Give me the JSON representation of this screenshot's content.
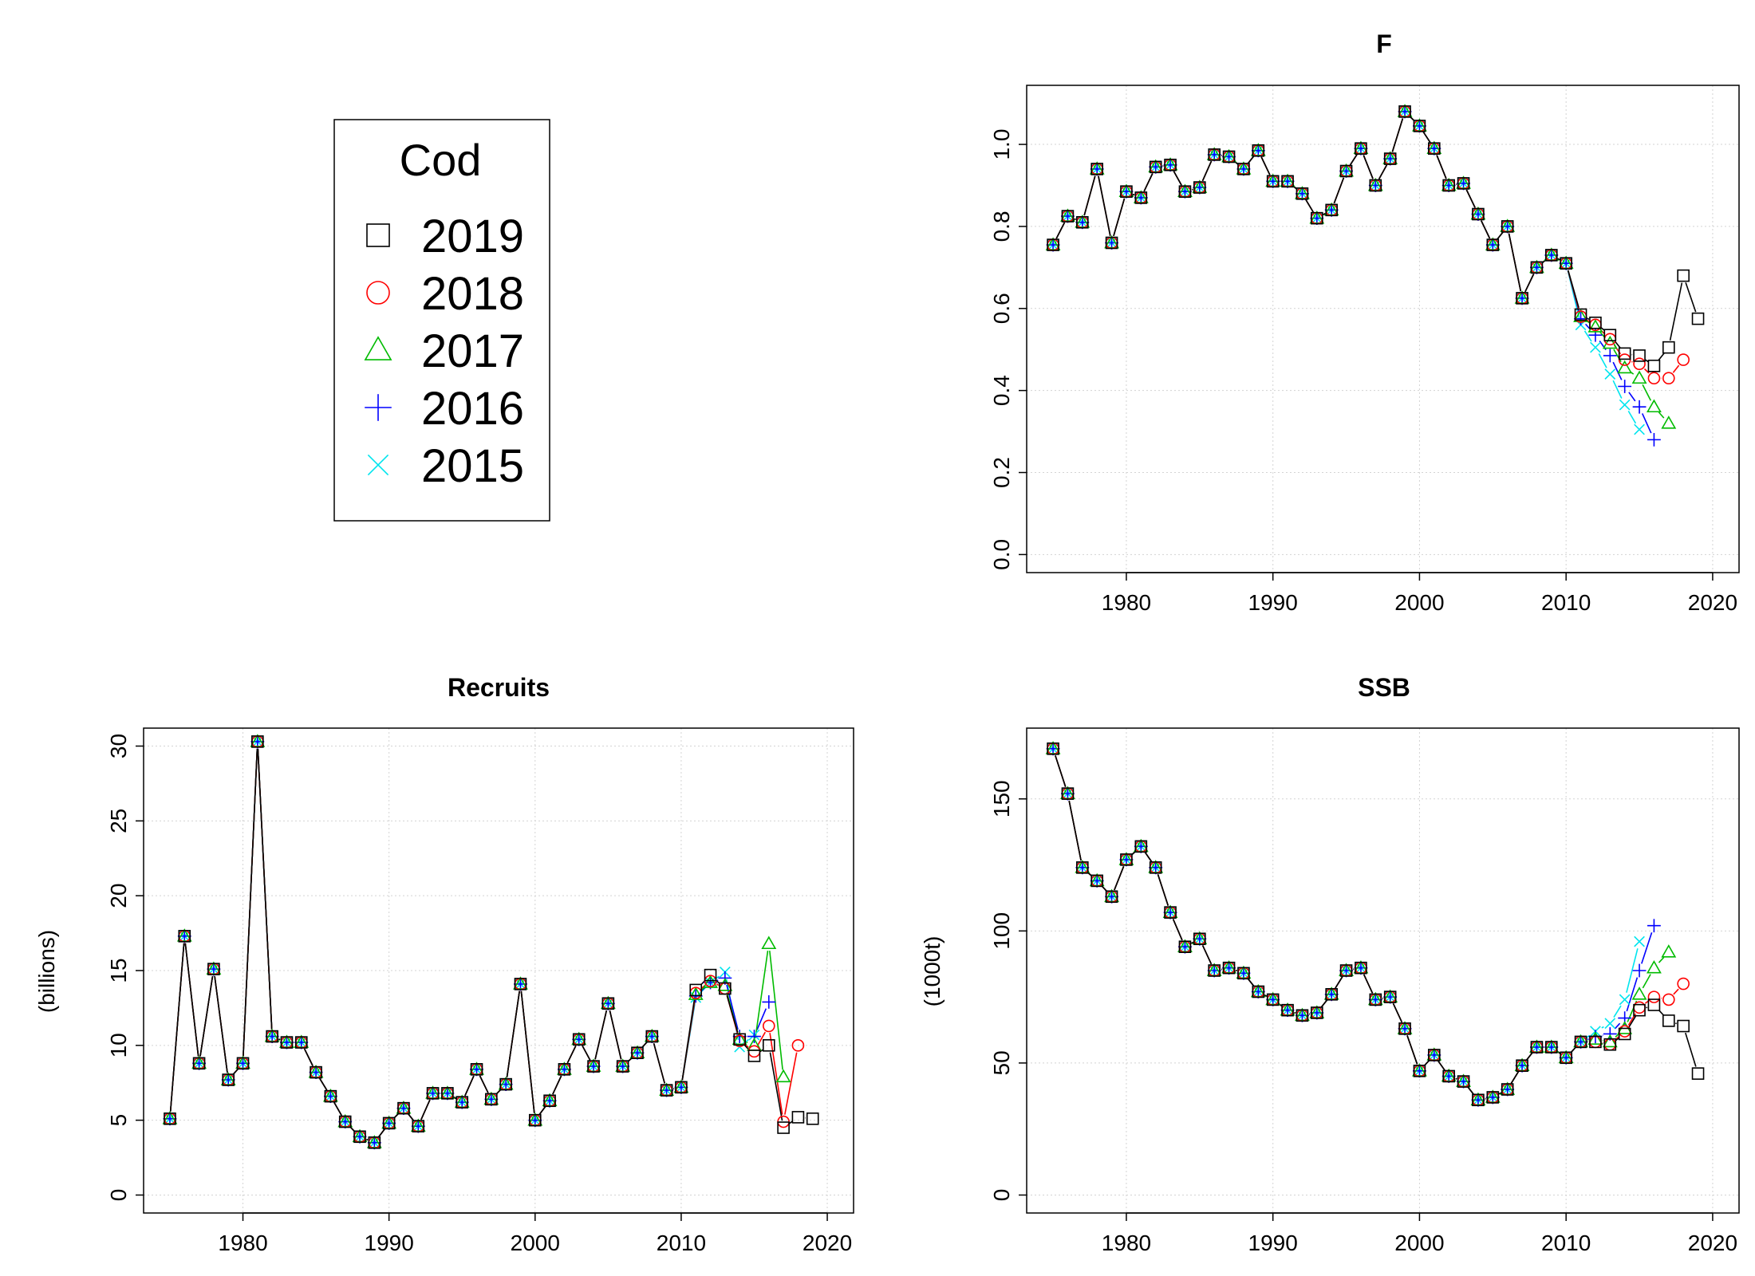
{
  "legend": {
    "title": "Cod",
    "placement": "top-left",
    "entries": [
      {
        "label": "2019",
        "color": "#000000",
        "symbol": "square"
      },
      {
        "label": "2018",
        "color": "#ff0000",
        "symbol": "circle"
      },
      {
        "label": "2017",
        "color": "#00bb00",
        "symbol": "triangle"
      },
      {
        "label": "2016",
        "color": "#0000ff",
        "symbol": "plus"
      },
      {
        "label": "2015",
        "color": "#00e5ee",
        "symbol": "cross"
      }
    ]
  },
  "chart_data": [
    {
      "id": "F",
      "type": "line",
      "title": "F",
      "xlabel": "",
      "ylabel": "",
      "xlim": [
        1975,
        2020
      ],
      "ylim": [
        0,
        1.1
      ],
      "xticks": [
        "1980",
        "1990",
        "2000",
        "2010",
        "2020"
      ],
      "yticks": [
        "0.0",
        "0.2",
        "0.4",
        "0.6",
        "0.8",
        "1.0"
      ],
      "grid": true,
      "common": {
        "x": [
          1975,
          1976,
          1977,
          1978,
          1979,
          1980,
          1981,
          1982,
          1983,
          1984,
          1985,
          1986,
          1987,
          1988,
          1989,
          1990,
          1991,
          1992,
          1993,
          1994,
          1995,
          1996,
          1997,
          1998,
          1999,
          2000,
          2001,
          2002,
          2003,
          2004,
          2005,
          2006,
          2007,
          2008,
          2009,
          2010
        ],
        "y": [
          0.755,
          0.825,
          0.81,
          0.94,
          0.76,
          0.885,
          0.87,
          0.945,
          0.95,
          0.885,
          0.895,
          0.975,
          0.97,
          0.94,
          0.985,
          0.91,
          0.91,
          0.88,
          0.82,
          0.84,
          0.935,
          0.99,
          0.9,
          0.965,
          1.08,
          1.045,
          0.99,
          0.9,
          0.905,
          0.83,
          0.755,
          0.8,
          0.625,
          0.7,
          0.73,
          0.71
        ]
      },
      "series": [
        {
          "name": "2019",
          "x": [
            2011,
            2012,
            2013,
            2014,
            2015,
            2016,
            2017,
            2018,
            2019
          ],
          "y": [
            0.585,
            0.565,
            0.535,
            0.49,
            0.485,
            0.46,
            0.505,
            0.68,
            0.575
          ]
        },
        {
          "name": "2018",
          "x": [
            2011,
            2012,
            2013,
            2014,
            2015,
            2016,
            2017,
            2018
          ],
          "y": [
            0.58,
            0.56,
            0.525,
            0.475,
            0.465,
            0.43,
            0.43,
            0.475
          ]
        },
        {
          "name": "2017",
          "x": [
            2011,
            2012,
            2013,
            2014,
            2015,
            2016,
            2017
          ],
          "y": [
            0.58,
            0.555,
            0.515,
            0.455,
            0.43,
            0.36,
            0.32
          ]
        },
        {
          "name": "2016",
          "x": [
            2011,
            2012,
            2013,
            2014,
            2015,
            2016
          ],
          "y": [
            0.575,
            0.535,
            0.485,
            0.41,
            0.36,
            0.28
          ]
        },
        {
          "name": "2015",
          "x": [
            2011,
            2012,
            2013,
            2014,
            2015
          ],
          "y": [
            0.56,
            0.505,
            0.44,
            0.365,
            0.305
          ]
        }
      ]
    },
    {
      "id": "Recruits",
      "type": "line",
      "title": "Recruits",
      "xlabel": "",
      "ylabel": "(billions)",
      "xlim": [
        1975,
        2020
      ],
      "ylim": [
        0,
        30
      ],
      "xticks": [
        "1980",
        "1990",
        "2000",
        "2010",
        "2020"
      ],
      "yticks": [
        "0",
        "5",
        "10",
        "15",
        "20",
        "25",
        "30"
      ],
      "grid": true,
      "common": {
        "x": [
          1975,
          1976,
          1977,
          1978,
          1979,
          1980,
          1981,
          1982,
          1983,
          1984,
          1985,
          1986,
          1987,
          1988,
          1989,
          1990,
          1991,
          1992,
          1993,
          1994,
          1995,
          1996,
          1997,
          1998,
          1999,
          2000,
          2001,
          2002,
          2003,
          2004,
          2005,
          2006,
          2007,
          2008,
          2009,
          2010
        ],
        "y": [
          5.1,
          17.3,
          8.8,
          15.1,
          7.7,
          8.8,
          30.3,
          10.6,
          10.2,
          10.2,
          8.2,
          6.6,
          4.9,
          3.9,
          3.5,
          4.8,
          5.8,
          4.6,
          6.8,
          6.8,
          6.2,
          8.4,
          6.4,
          7.4,
          14.1,
          5.0,
          6.3,
          8.4,
          10.4,
          8.6,
          12.8,
          8.6,
          9.5,
          10.6,
          7.0,
          7.2
        ]
      },
      "series": [
        {
          "name": "2019",
          "x": [
            2011,
            2012,
            2013,
            2014,
            2015,
            2016,
            2017,
            2018,
            2019
          ],
          "y": [
            13.7,
            14.7,
            13.8,
            10.4,
            9.3,
            10.0,
            4.5,
            5.2,
            5.1
          ]
        },
        {
          "name": "2018",
          "x": [
            2011,
            2012,
            2013,
            2014,
            2015,
            2016,
            2017,
            2018
          ],
          "y": [
            13.5,
            14.3,
            13.8,
            10.3,
            9.6,
            11.3,
            4.9,
            10.0
          ]
        },
        {
          "name": "2017",
          "x": [
            2011,
            2012,
            2013,
            2014,
            2015,
            2016,
            2017
          ],
          "y": [
            13.4,
            14.2,
            14.0,
            10.4,
            10.0,
            16.8,
            7.9
          ]
        },
        {
          "name": "2016",
          "x": [
            2011,
            2012,
            2013,
            2014,
            2015,
            2016
          ],
          "y": [
            13.3,
            14.2,
            14.5,
            10.6,
            10.6,
            12.9
          ]
        },
        {
          "name": "2015",
          "x": [
            2011,
            2012,
            2013,
            2014,
            2015
          ],
          "y": [
            13.2,
            14.2,
            14.9,
            9.9,
            10.7
          ]
        }
      ]
    },
    {
      "id": "SSB",
      "type": "line",
      "title": "SSB",
      "xlabel": "",
      "ylabel": "(1000t)",
      "xlim": [
        1975,
        2020
      ],
      "ylim": [
        0,
        170
      ],
      "xticks": [
        "1980",
        "1990",
        "2000",
        "2010",
        "2020"
      ],
      "yticks": [
        "0",
        "50",
        "100",
        "150"
      ],
      "grid": true,
      "common": {
        "x": [
          1975,
          1976,
          1977,
          1978,
          1979,
          1980,
          1981,
          1982,
          1983,
          1984,
          1985,
          1986,
          1987,
          1988,
          1989,
          1990,
          1991,
          1992,
          1993,
          1994,
          1995,
          1996,
          1997,
          1998,
          1999,
          2000,
          2001,
          2002,
          2003,
          2004,
          2005,
          2006,
          2007,
          2008,
          2009,
          2010
        ],
        "y": [
          169,
          152,
          124,
          119,
          113,
          127,
          132,
          124,
          107,
          94,
          97,
          85,
          86,
          84,
          77,
          74,
          70,
          68,
          69,
          76,
          85,
          86,
          74,
          75,
          63,
          47,
          53,
          45,
          43,
          36,
          37,
          40,
          49,
          56,
          56,
          52
        ]
      },
      "series": [
        {
          "name": "2019",
          "x": [
            2011,
            2012,
            2013,
            2014,
            2015,
            2016,
            2017,
            2018,
            2019
          ],
          "y": [
            58,
            58,
            57,
            61,
            70,
            72,
            66,
            64,
            46
          ]
        },
        {
          "name": "2018",
          "x": [
            2011,
            2012,
            2013,
            2014,
            2015,
            2016,
            2017,
            2018
          ],
          "y": [
            58,
            58,
            57,
            62,
            71,
            75,
            74,
            80
          ]
        },
        {
          "name": "2017",
          "x": [
            2011,
            2012,
            2013,
            2014,
            2015,
            2016,
            2017
          ],
          "y": [
            58,
            59,
            58,
            63,
            76,
            86,
            92
          ]
        },
        {
          "name": "2016",
          "x": [
            2011,
            2012,
            2013,
            2014,
            2015,
            2016
          ],
          "y": [
            58,
            60,
            61,
            67,
            85,
            102
          ]
        },
        {
          "name": "2015",
          "x": [
            2011,
            2012,
            2013,
            2014,
            2015
          ],
          "y": [
            58,
            62,
            65,
            74,
            96
          ]
        }
      ]
    }
  ]
}
